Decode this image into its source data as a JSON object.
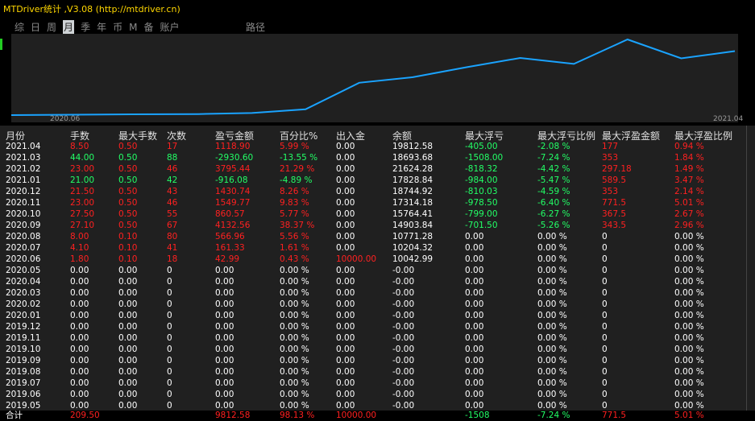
{
  "app": {
    "title": "MTDriver统计 ,V3.08 (http://mtdriver.cn)"
  },
  "tabs": [
    {
      "label": "综",
      "active": false
    },
    {
      "label": "日",
      "active": false
    },
    {
      "label": "周",
      "active": false
    },
    {
      "label": "月",
      "active": true
    },
    {
      "label": "季",
      "active": false
    },
    {
      "label": "年",
      "active": false
    },
    {
      "label": "币",
      "active": false
    },
    {
      "label": "M",
      "active": false
    },
    {
      "label": "备",
      "active": false
    },
    {
      "label": "账户",
      "active": false
    }
  ],
  "path_tab": "路径",
  "chart_data": {
    "type": "line",
    "x": [
      "2020.06",
      "2020.07",
      "2020.08",
      "2020.09",
      "2020.10",
      "2020.11",
      "2020.12",
      "2021.01",
      "2021.02",
      "2021.03",
      "2021.04"
    ],
    "values": [
      10042.99,
      10204.32,
      10771.28,
      14903.84,
      15764.41,
      17314.18,
      18744.92,
      17828.84,
      21624.28,
      18693.68,
      19812.58
    ],
    "x_tick_labels": [
      "2020.06",
      "2021.04"
    ],
    "color": "#1aa3ff"
  },
  "columns": [
    "月份",
    "手数",
    "最大手数",
    "次数",
    "盈亏金额",
    "百分比%",
    "出入金",
    "余额",
    "最大浮亏",
    "最大浮亏比例",
    "最大浮盈金额",
    "最大浮盈比例"
  ],
  "rows": [
    {
      "c": [
        "2021.04",
        "8.50",
        "0.50",
        "17",
        "1118.90",
        "5.99 %",
        "0.00",
        "19812.58",
        "-405.00",
        "-2.08 %",
        "177",
        "0.94 %"
      ],
      "k": [
        "w",
        "r",
        "r",
        "r",
        "r",
        "r",
        "w",
        "w",
        "g",
        "g",
        "r",
        "r"
      ]
    },
    {
      "c": [
        "2021.03",
        "44.00",
        "0.50",
        "88",
        "-2930.60",
        "-13.55 %",
        "0.00",
        "18693.68",
        "-1508.00",
        "-7.24 %",
        "353",
        "1.84 %"
      ],
      "k": [
        "w",
        "g",
        "g",
        "g",
        "g",
        "g",
        "w",
        "w",
        "g",
        "g",
        "r",
        "r"
      ]
    },
    {
      "c": [
        "2021.02",
        "23.00",
        "0.50",
        "46",
        "3795.44",
        "21.29 %",
        "0.00",
        "21624.28",
        "-818.32",
        "-4.42 %",
        "297.18",
        "1.49 %"
      ],
      "k": [
        "w",
        "r",
        "r",
        "r",
        "r",
        "r",
        "w",
        "w",
        "g",
        "g",
        "r",
        "r"
      ]
    },
    {
      "c": [
        "2021.01",
        "21.00",
        "0.50",
        "42",
        "-916.08",
        "-4.89 %",
        "0.00",
        "17828.84",
        "-984.00",
        "-5.47 %",
        "589.5",
        "3.47 %"
      ],
      "k": [
        "w",
        "g",
        "g",
        "g",
        "g",
        "g",
        "w",
        "w",
        "g",
        "g",
        "r",
        "r"
      ]
    },
    {
      "c": [
        "2020.12",
        "21.50",
        "0.50",
        "43",
        "1430.74",
        "8.26 %",
        "0.00",
        "18744.92",
        "-810.03",
        "-4.59 %",
        "353",
        "2.14 %"
      ],
      "k": [
        "w",
        "r",
        "r",
        "r",
        "r",
        "r",
        "w",
        "w",
        "g",
        "g",
        "r",
        "r"
      ]
    },
    {
      "c": [
        "2020.11",
        "23.00",
        "0.50",
        "46",
        "1549.77",
        "9.83 %",
        "0.00",
        "17314.18",
        "-978.50",
        "-6.40 %",
        "771.5",
        "5.01 %"
      ],
      "k": [
        "w",
        "r",
        "r",
        "r",
        "r",
        "r",
        "w",
        "w",
        "g",
        "g",
        "r",
        "r"
      ]
    },
    {
      "c": [
        "2020.10",
        "27.50",
        "0.50",
        "55",
        "860.57",
        "5.77 %",
        "0.00",
        "15764.41",
        "-799.00",
        "-6.27 %",
        "367.5",
        "2.67 %"
      ],
      "k": [
        "w",
        "r",
        "r",
        "r",
        "r",
        "r",
        "w",
        "w",
        "g",
        "g",
        "r",
        "r"
      ]
    },
    {
      "c": [
        "2020.09",
        "27.10",
        "0.50",
        "67",
        "4132.56",
        "38.37 %",
        "0.00",
        "14903.84",
        "-701.50",
        "-5.26 %",
        "343.5",
        "2.96 %"
      ],
      "k": [
        "w",
        "r",
        "r",
        "r",
        "r",
        "r",
        "w",
        "w",
        "g",
        "g",
        "r",
        "r"
      ]
    },
    {
      "c": [
        "2020.08",
        "8.00",
        "0.10",
        "80",
        "566.96",
        "5.56 %",
        "0.00",
        "10771.28",
        "0.00",
        "0.00 %",
        "0",
        "0.00 %"
      ],
      "k": [
        "w",
        "r",
        "r",
        "r",
        "r",
        "r",
        "w",
        "w",
        "w",
        "w",
        "w",
        "w"
      ]
    },
    {
      "c": [
        "2020.07",
        "4.10",
        "0.10",
        "41",
        "161.33",
        "1.61 %",
        "0.00",
        "10204.32",
        "0.00",
        "0.00 %",
        "0",
        "0.00 %"
      ],
      "k": [
        "w",
        "r",
        "r",
        "r",
        "r",
        "r",
        "w",
        "w",
        "w",
        "w",
        "w",
        "w"
      ]
    },
    {
      "c": [
        "2020.06",
        "1.80",
        "0.10",
        "18",
        "42.99",
        "0.43 %",
        "10000.00",
        "10042.99",
        "0.00",
        "0.00 %",
        "0",
        "0.00 %"
      ],
      "k": [
        "w",
        "r",
        "r",
        "r",
        "r",
        "r",
        "r",
        "w",
        "w",
        "w",
        "w",
        "w"
      ]
    },
    {
      "c": [
        "2020.05",
        "0.00",
        "0.00",
        "0",
        "0.00",
        "0.00 %",
        "0.00",
        "-0.00",
        "0.00",
        "0.00 %",
        "0",
        "0.00 %"
      ],
      "k": [
        "w",
        "w",
        "w",
        "w",
        "w",
        "w",
        "w",
        "w",
        "w",
        "w",
        "w",
        "w"
      ]
    },
    {
      "c": [
        "2020.04",
        "0.00",
        "0.00",
        "0",
        "0.00",
        "0.00 %",
        "0.00",
        "-0.00",
        "0.00",
        "0.00 %",
        "0",
        "0.00 %"
      ],
      "k": [
        "w",
        "w",
        "w",
        "w",
        "w",
        "w",
        "w",
        "w",
        "w",
        "w",
        "w",
        "w"
      ]
    },
    {
      "c": [
        "2020.03",
        "0.00",
        "0.00",
        "0",
        "0.00",
        "0.00 %",
        "0.00",
        "-0.00",
        "0.00",
        "0.00 %",
        "0",
        "0.00 %"
      ],
      "k": [
        "w",
        "w",
        "w",
        "w",
        "w",
        "w",
        "w",
        "w",
        "w",
        "w",
        "w",
        "w"
      ]
    },
    {
      "c": [
        "2020.02",
        "0.00",
        "0.00",
        "0",
        "0.00",
        "0.00 %",
        "0.00",
        "-0.00",
        "0.00",
        "0.00 %",
        "0",
        "0.00 %"
      ],
      "k": [
        "w",
        "w",
        "w",
        "w",
        "w",
        "w",
        "w",
        "w",
        "w",
        "w",
        "w",
        "w"
      ]
    },
    {
      "c": [
        "2020.01",
        "0.00",
        "0.00",
        "0",
        "0.00",
        "0.00 %",
        "0.00",
        "-0.00",
        "0.00",
        "0.00 %",
        "0",
        "0.00 %"
      ],
      "k": [
        "w",
        "w",
        "w",
        "w",
        "w",
        "w",
        "w",
        "w",
        "w",
        "w",
        "w",
        "w"
      ]
    },
    {
      "c": [
        "2019.12",
        "0.00",
        "0.00",
        "0",
        "0.00",
        "0.00 %",
        "0.00",
        "-0.00",
        "0.00",
        "0.00 %",
        "0",
        "0.00 %"
      ],
      "k": [
        "w",
        "w",
        "w",
        "w",
        "w",
        "w",
        "w",
        "w",
        "w",
        "w",
        "w",
        "w"
      ]
    },
    {
      "c": [
        "2019.11",
        "0.00",
        "0.00",
        "0",
        "0.00",
        "0.00 %",
        "0.00",
        "-0.00",
        "0.00",
        "0.00 %",
        "0",
        "0.00 %"
      ],
      "k": [
        "w",
        "w",
        "w",
        "w",
        "w",
        "w",
        "w",
        "w",
        "w",
        "w",
        "w",
        "w"
      ]
    },
    {
      "c": [
        "2019.10",
        "0.00",
        "0.00",
        "0",
        "0.00",
        "0.00 %",
        "0.00",
        "-0.00",
        "0.00",
        "0.00 %",
        "0",
        "0.00 %"
      ],
      "k": [
        "w",
        "w",
        "w",
        "w",
        "w",
        "w",
        "w",
        "w",
        "w",
        "w",
        "w",
        "w"
      ]
    },
    {
      "c": [
        "2019.09",
        "0.00",
        "0.00",
        "0",
        "0.00",
        "0.00 %",
        "0.00",
        "-0.00",
        "0.00",
        "0.00 %",
        "0",
        "0.00 %"
      ],
      "k": [
        "w",
        "w",
        "w",
        "w",
        "w",
        "w",
        "w",
        "w",
        "w",
        "w",
        "w",
        "w"
      ]
    },
    {
      "c": [
        "2019.08",
        "0.00",
        "0.00",
        "0",
        "0.00",
        "0.00 %",
        "0.00",
        "-0.00",
        "0.00",
        "0.00 %",
        "0",
        "0.00 %"
      ],
      "k": [
        "w",
        "w",
        "w",
        "w",
        "w",
        "w",
        "w",
        "w",
        "w",
        "w",
        "w",
        "w"
      ]
    },
    {
      "c": [
        "2019.07",
        "0.00",
        "0.00",
        "0",
        "0.00",
        "0.00 %",
        "0.00",
        "-0.00",
        "0.00",
        "0.00 %",
        "0",
        "0.00 %"
      ],
      "k": [
        "w",
        "w",
        "w",
        "w",
        "w",
        "w",
        "w",
        "w",
        "w",
        "w",
        "w",
        "w"
      ]
    },
    {
      "c": [
        "2019.06",
        "0.00",
        "0.00",
        "0",
        "0.00",
        "0.00 %",
        "0.00",
        "-0.00",
        "0.00",
        "0.00 %",
        "0",
        "0.00 %"
      ],
      "k": [
        "w",
        "w",
        "w",
        "w",
        "w",
        "w",
        "w",
        "w",
        "w",
        "w",
        "w",
        "w"
      ]
    },
    {
      "c": [
        "2019.05",
        "0.00",
        "0.00",
        "0",
        "0.00",
        "0.00 %",
        "0.00",
        "-0.00",
        "0.00",
        "0.00 %",
        "0",
        "0.00 %"
      ],
      "k": [
        "w",
        "w",
        "w",
        "w",
        "w",
        "w",
        "w",
        "w",
        "w",
        "w",
        "w",
        "w"
      ]
    }
  ],
  "total": {
    "c": [
      "合计",
      "209.50",
      "",
      "",
      "9812.58",
      "98.13 %",
      "10000.00",
      "",
      "-1508",
      "-7.24 %",
      "771.5",
      "5.01 %"
    ],
    "k": [
      "w",
      "r",
      "w",
      "w",
      "r",
      "r",
      "r",
      "w",
      "g",
      "g",
      "r",
      "r"
    ]
  },
  "colors": {
    "red": "#ff2020",
    "green": "#22ff66",
    "white": "#ffffff",
    "line": "#1aa3ff"
  }
}
